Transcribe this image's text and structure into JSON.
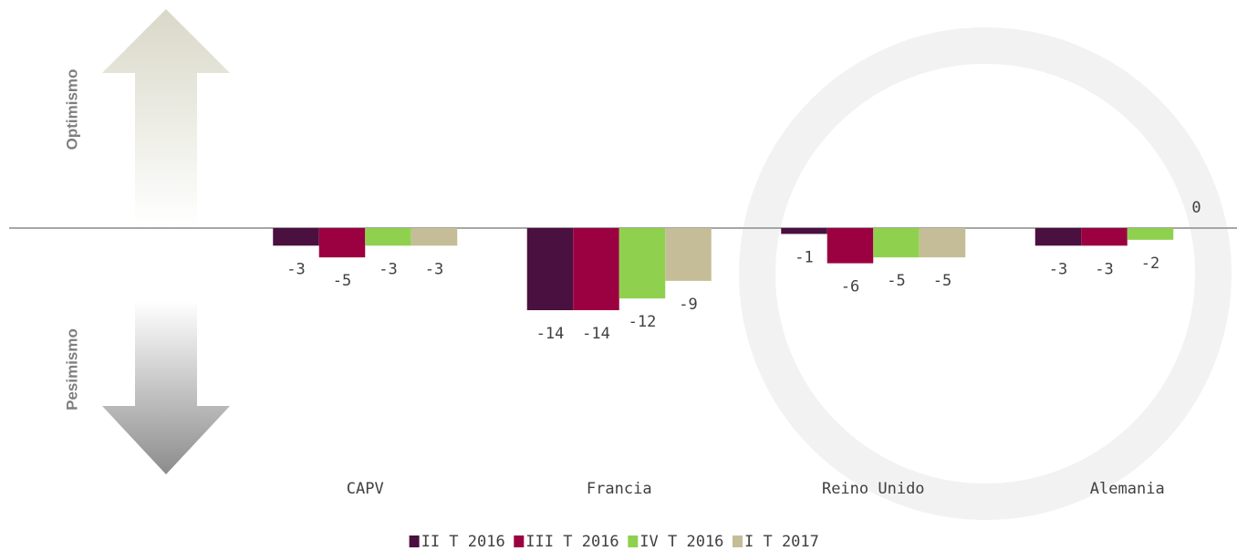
{
  "chart_data": {
    "type": "bar",
    "annotations": {
      "top": "Optimismo",
      "bottom": "Pesimismo"
    },
    "categories": [
      "CAPV",
      "Francia",
      "Reino Unido",
      "Alemania"
    ],
    "series": [
      {
        "name": "II T 2016",
        "color": "#4a1040",
        "values": [
          -3,
          -14,
          -1,
          -3
        ]
      },
      {
        "name": "III T 2016",
        "color": "#9b0040",
        "values": [
          -5,
          -14,
          -6,
          -3
        ]
      },
      {
        "name": "IV T 2016",
        "color": "#8fd14f",
        "values": [
          -3,
          -12,
          -5,
          -2
        ]
      },
      {
        "name": "I T 2017",
        "color": "#c4bd97",
        "values": [
          -3,
          -9,
          -5,
          0
        ]
      }
    ]
  }
}
